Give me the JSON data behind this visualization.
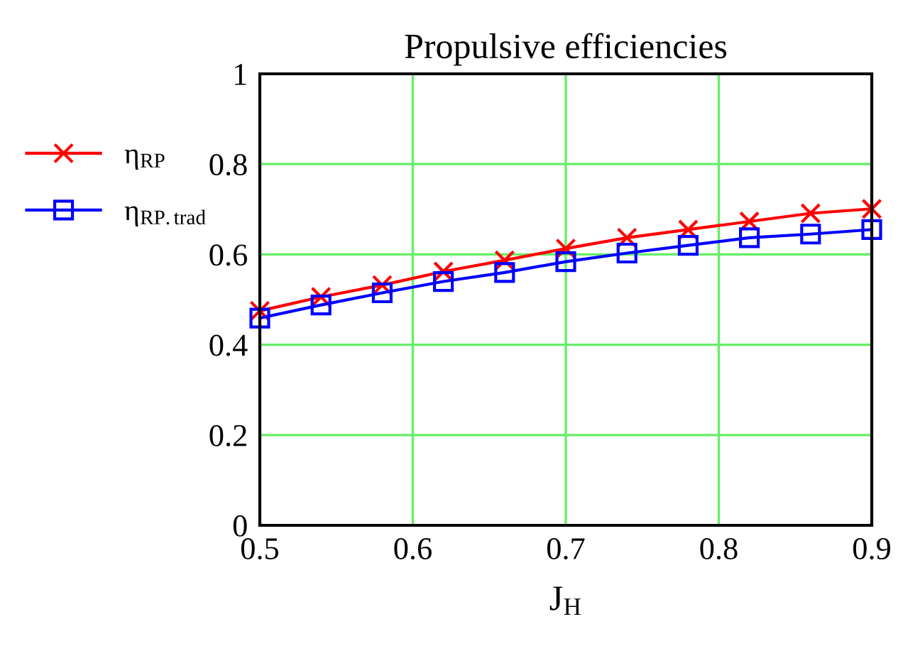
{
  "chart_data": {
    "type": "line",
    "title": "Propulsive efficiencies",
    "xlabel": "J$_{H}$",
    "x": [
      0.5,
      0.54,
      0.58,
      0.62,
      0.66,
      0.7,
      0.74,
      0.78,
      0.82,
      0.86,
      0.9
    ],
    "series": [
      {
        "name": "η$_{RP}$",
        "color": "#ff0000",
        "marker": "cross",
        "values": [
          0.475,
          0.506,
          0.532,
          0.562,
          0.587,
          0.613,
          0.637,
          0.655,
          0.673,
          0.691,
          0.701
        ]
      },
      {
        "name": "η$_{RP.trad}$",
        "color": "#0000ff",
        "marker": "square",
        "values": [
          0.459,
          0.488,
          0.515,
          0.54,
          0.56,
          0.584,
          0.603,
          0.62,
          0.637,
          0.645,
          0.655
        ]
      }
    ],
    "xlim": [
      0.5,
      0.9
    ],
    "xticks": [
      0.5,
      0.6,
      0.7,
      0.8,
      0.9
    ],
    "ylim": [
      0,
      1
    ],
    "yticks": [
      0,
      0.2,
      0.4,
      0.6,
      0.8,
      1
    ],
    "grid": true,
    "legend": "left",
    "line_style": "solid"
  }
}
